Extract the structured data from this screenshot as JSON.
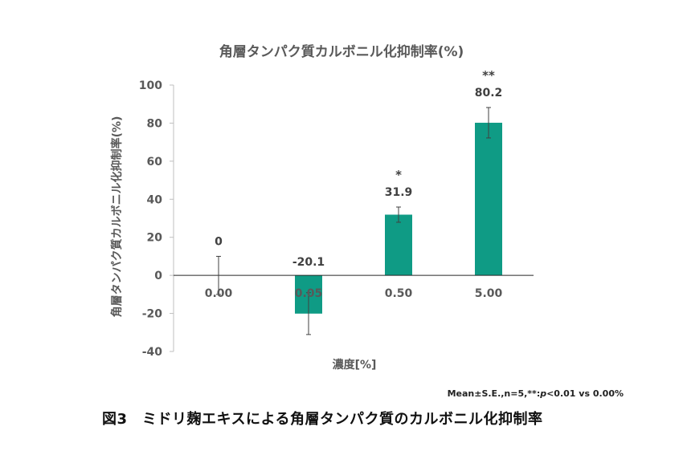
{
  "chart_data": {
    "type": "bar",
    "title": "角層タンパク質カルボニル化抑制率(%)",
    "xlabel": "濃度[%]",
    "ylabel": "角層タンパク質カルボニル化抑制率(%)",
    "categories": [
      "0.00",
      "0.05",
      "0.50",
      "5.00"
    ],
    "values": [
      0,
      -20.1,
      31.9,
      80.2
    ],
    "data_labels": [
      "0",
      "-20.1",
      "31.9",
      "80.2"
    ],
    "errors": [
      10,
      11,
      4,
      8
    ],
    "significance": [
      "",
      "",
      "*",
      "**"
    ],
    "ylim": [
      -40,
      100
    ],
    "yticks": [
      "100",
      "80",
      "60",
      "40",
      "20",
      "0",
      "-20",
      "-40"
    ],
    "bar_color": "#0f9b85",
    "grid": false,
    "legend": "none"
  },
  "footnote": {
    "pre": "Mean±S.E.,n=5,**:",
    "italic": "p",
    "post": "<0.01  vs 0.00%"
  },
  "caption": "図3　ミドリ麹エキスによる角層タンパク質のカルボニル化抑制率"
}
